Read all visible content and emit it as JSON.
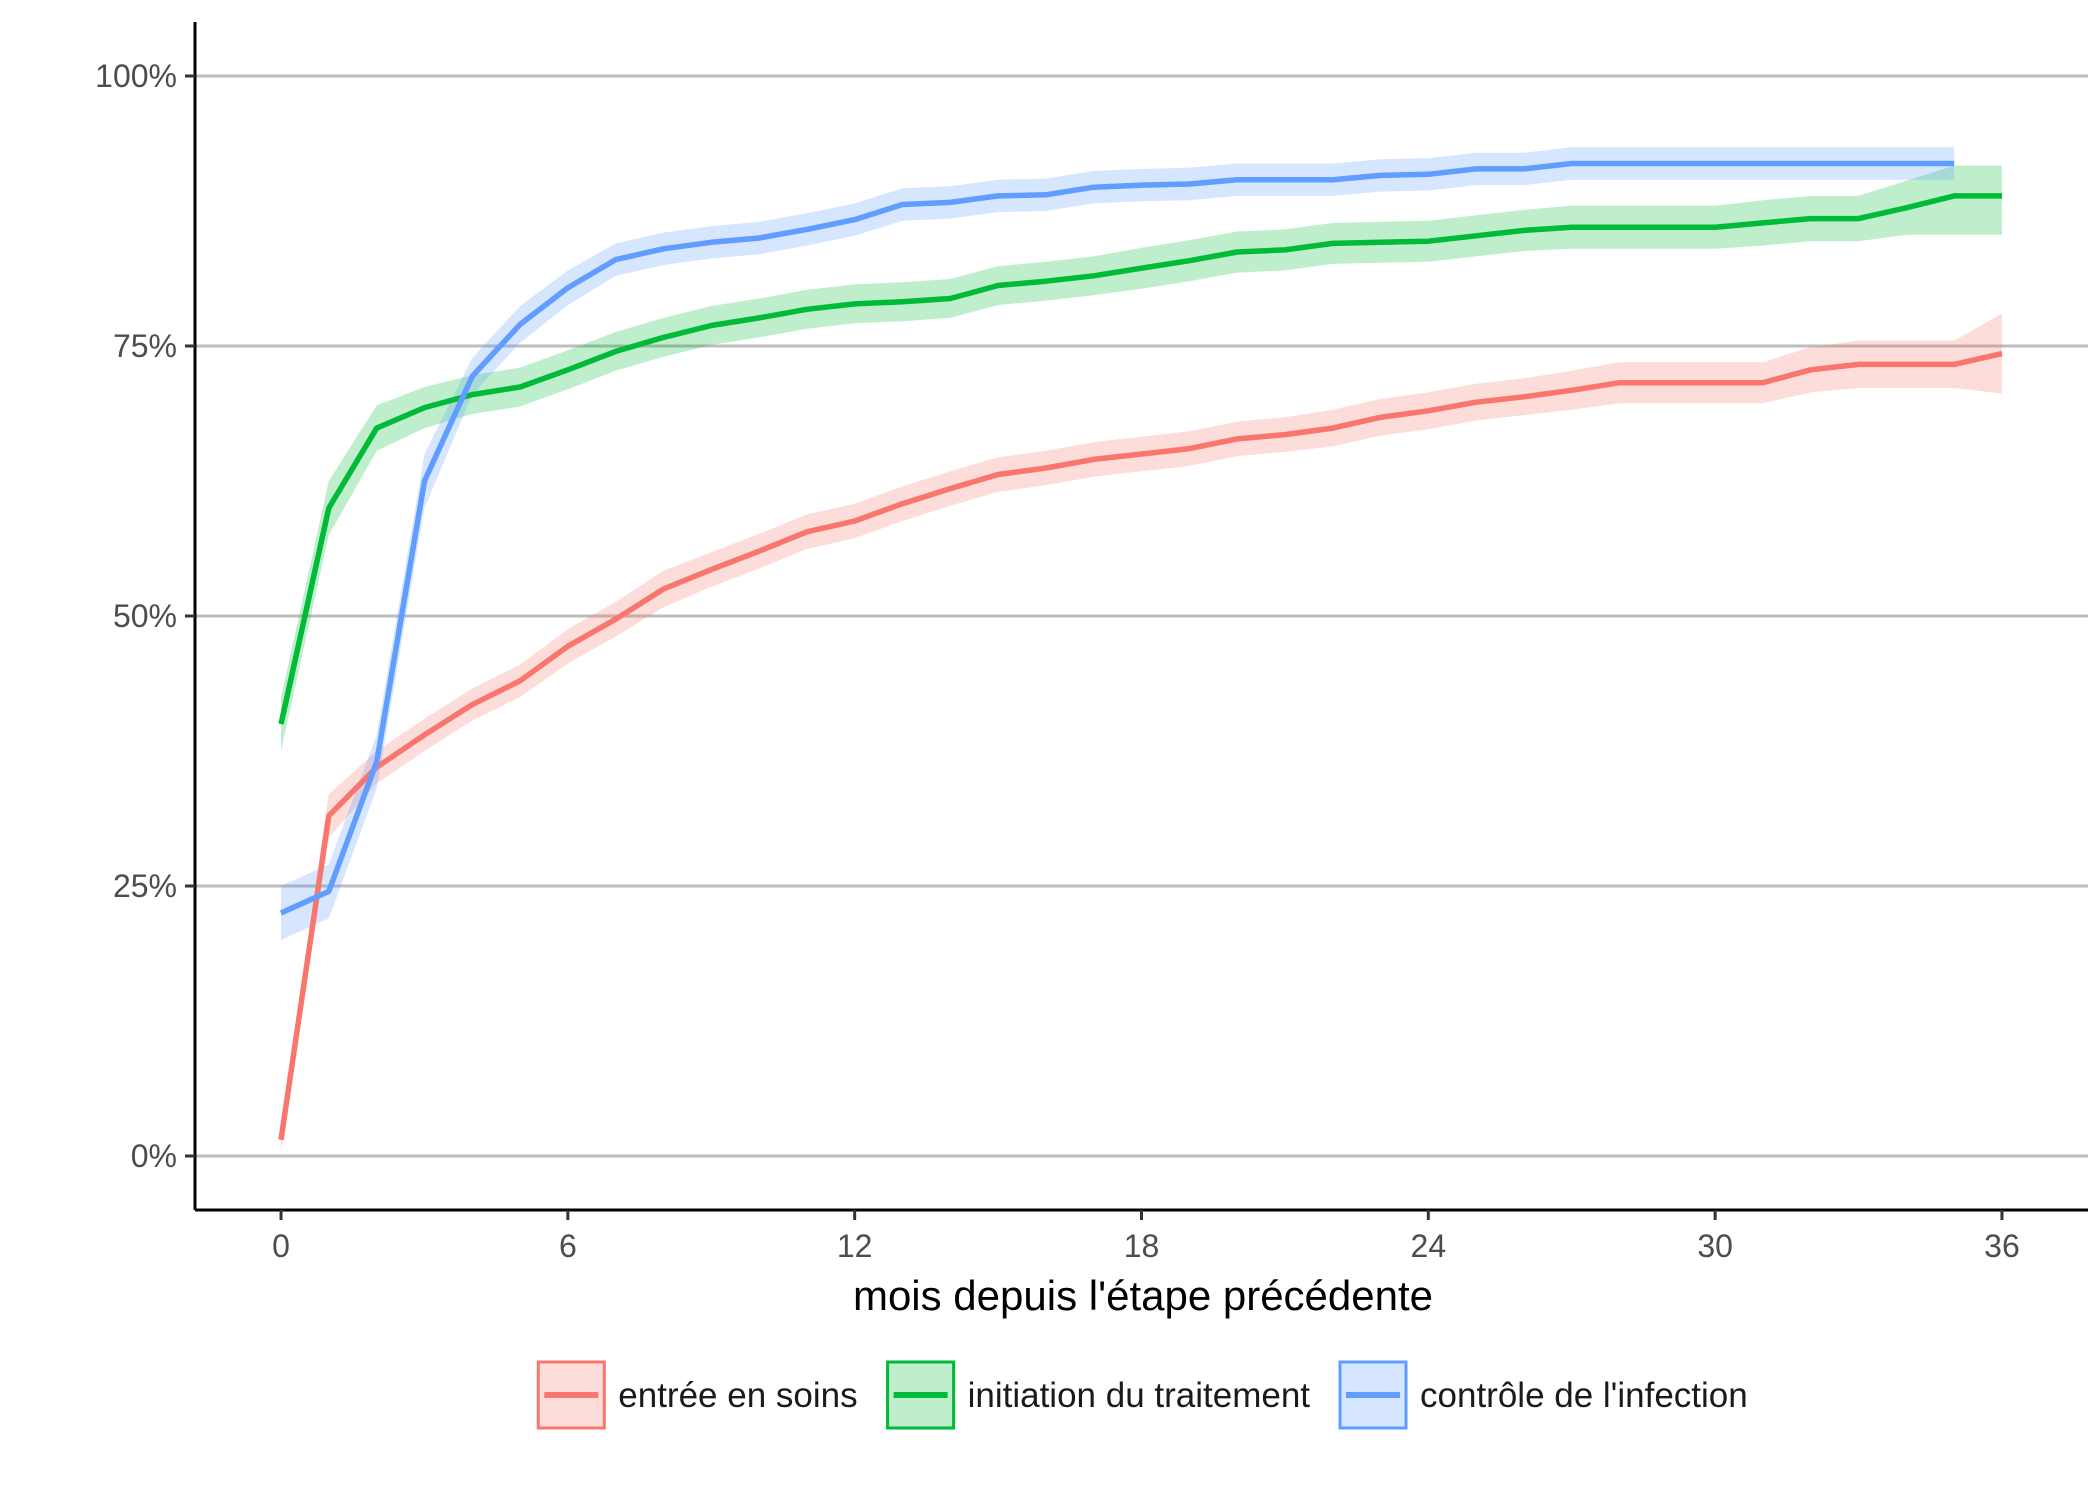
{
  "chart_data": {
    "type": "line",
    "title": "",
    "xlabel": "mois depuis l'étape précédente",
    "ylabel": "",
    "xlim": [
      -1.8,
      37.8
    ],
    "ylim": [
      -0.05,
      1.05
    ],
    "x_ticks": [
      0,
      6,
      12,
      18,
      24,
      30,
      36
    ],
    "x_tick_labels": [
      "0",
      "6",
      "12",
      "18",
      "24",
      "30",
      "36"
    ],
    "y_ticks": [
      0,
      0.25,
      0.5,
      0.75,
      1.0
    ],
    "y_tick_labels": [
      "0%",
      "25%",
      "50%",
      "75%",
      "100%"
    ],
    "grid": "horizontal major lines",
    "legend_position": "bottom",
    "series": [
      {
        "name": "entrée en soins",
        "color": "#F8766D",
        "x": [
          0,
          1,
          2,
          3,
          4,
          5,
          6,
          7,
          8,
          9,
          10,
          11,
          12,
          13,
          14,
          15,
          16,
          17,
          18,
          19,
          20,
          21,
          22,
          23,
          24,
          25,
          26,
          27,
          28,
          29,
          30,
          31,
          32,
          33,
          34,
          35,
          36
        ],
        "y": [
          0.015,
          0.315,
          0.36,
          0.39,
          0.418,
          0.44,
          0.472,
          0.497,
          0.525,
          0.543,
          0.56,
          0.578,
          0.588,
          0.604,
          0.618,
          0.631,
          0.637,
          0.645,
          0.65,
          0.655,
          0.664,
          0.668,
          0.674,
          0.684,
          0.69,
          0.698,
          0.703,
          0.709,
          0.716,
          0.716,
          0.716,
          0.716,
          0.728,
          0.733,
          0.733,
          0.733,
          0.743
        ],
        "lower": [
          0.005,
          0.295,
          0.345,
          0.375,
          0.403,
          0.425,
          0.456,
          0.481,
          0.508,
          0.527,
          0.544,
          0.562,
          0.572,
          0.588,
          0.602,
          0.615,
          0.621,
          0.629,
          0.634,
          0.639,
          0.648,
          0.652,
          0.657,
          0.667,
          0.673,
          0.681,
          0.686,
          0.691,
          0.697,
          0.697,
          0.697,
          0.697,
          0.707,
          0.711,
          0.711,
          0.711,
          0.706
        ],
        "upper": [
          0.025,
          0.335,
          0.375,
          0.405,
          0.433,
          0.455,
          0.488,
          0.513,
          0.542,
          0.559,
          0.576,
          0.594,
          0.604,
          0.62,
          0.634,
          0.647,
          0.653,
          0.661,
          0.666,
          0.671,
          0.68,
          0.684,
          0.691,
          0.701,
          0.707,
          0.715,
          0.72,
          0.727,
          0.735,
          0.735,
          0.735,
          0.735,
          0.749,
          0.755,
          0.755,
          0.755,
          0.78
        ]
      },
      {
        "name": "initiation du traitement",
        "color": "#00BA38",
        "x": [
          0,
          1,
          2,
          3,
          4,
          5,
          6,
          7,
          8,
          9,
          10,
          11,
          12,
          13,
          14,
          15,
          16,
          17,
          18,
          19,
          20,
          21,
          22,
          23,
          24,
          25,
          26,
          27,
          28,
          29,
          30,
          31,
          32,
          33,
          34,
          35,
          36
        ],
        "y": [
          0.4,
          0.6,
          0.674,
          0.693,
          0.705,
          0.712,
          0.728,
          0.745,
          0.758,
          0.769,
          0.776,
          0.784,
          0.789,
          0.791,
          0.794,
          0.806,
          0.81,
          0.815,
          0.822,
          0.829,
          0.837,
          0.839,
          0.845,
          0.846,
          0.847,
          0.852,
          0.857,
          0.86,
          0.86,
          0.86,
          0.86,
          0.864,
          0.868,
          0.868,
          0.878,
          0.889,
          0.889
        ],
        "lower": [
          0.375,
          0.575,
          0.653,
          0.674,
          0.687,
          0.694,
          0.71,
          0.727,
          0.74,
          0.751,
          0.758,
          0.766,
          0.771,
          0.773,
          0.776,
          0.788,
          0.792,
          0.797,
          0.803,
          0.81,
          0.818,
          0.82,
          0.826,
          0.827,
          0.828,
          0.833,
          0.838,
          0.84,
          0.84,
          0.84,
          0.84,
          0.843,
          0.847,
          0.847,
          0.853,
          0.853,
          0.853
        ],
        "upper": [
          0.425,
          0.625,
          0.695,
          0.712,
          0.723,
          0.73,
          0.746,
          0.763,
          0.776,
          0.787,
          0.794,
          0.802,
          0.807,
          0.809,
          0.812,
          0.824,
          0.828,
          0.833,
          0.841,
          0.848,
          0.856,
          0.858,
          0.864,
          0.865,
          0.866,
          0.871,
          0.876,
          0.88,
          0.88,
          0.88,
          0.88,
          0.885,
          0.889,
          0.889,
          0.903,
          0.917,
          0.917
        ]
      },
      {
        "name": "contrôle de l'infection",
        "color": "#619CFF",
        "x": [
          0,
          1,
          2,
          3,
          4,
          5,
          6,
          7,
          8,
          9,
          10,
          11,
          12,
          13,
          14,
          15,
          16,
          17,
          18,
          19,
          20,
          21,
          22,
          23,
          24,
          25,
          26,
          27,
          28,
          29,
          30,
          31,
          32,
          33,
          34,
          35
        ],
        "y": [
          0.225,
          0.245,
          0.365,
          0.625,
          0.722,
          0.77,
          0.804,
          0.83,
          0.84,
          0.846,
          0.85,
          0.858,
          0.867,
          0.881,
          0.883,
          0.889,
          0.89,
          0.897,
          0.899,
          0.9,
          0.904,
          0.904,
          0.904,
          0.908,
          0.909,
          0.914,
          0.914,
          0.919,
          0.919,
          0.919,
          0.919,
          0.919,
          0.919,
          0.919,
          0.919,
          0.919
        ],
        "lower": [
          0.2,
          0.22,
          0.34,
          0.6,
          0.705,
          0.753,
          0.788,
          0.815,
          0.825,
          0.831,
          0.835,
          0.843,
          0.852,
          0.866,
          0.868,
          0.874,
          0.875,
          0.882,
          0.884,
          0.885,
          0.889,
          0.889,
          0.889,
          0.893,
          0.894,
          0.899,
          0.899,
          0.904,
          0.904,
          0.904,
          0.904,
          0.904,
          0.904,
          0.904,
          0.904,
          0.904
        ],
        "upper": [
          0.25,
          0.27,
          0.39,
          0.65,
          0.739,
          0.787,
          0.82,
          0.845,
          0.855,
          0.861,
          0.865,
          0.873,
          0.882,
          0.896,
          0.898,
          0.904,
          0.905,
          0.912,
          0.914,
          0.915,
          0.919,
          0.919,
          0.919,
          0.923,
          0.924,
          0.929,
          0.929,
          0.934,
          0.934,
          0.934,
          0.934,
          0.934,
          0.934,
          0.934,
          0.934,
          0.934
        ]
      }
    ]
  }
}
